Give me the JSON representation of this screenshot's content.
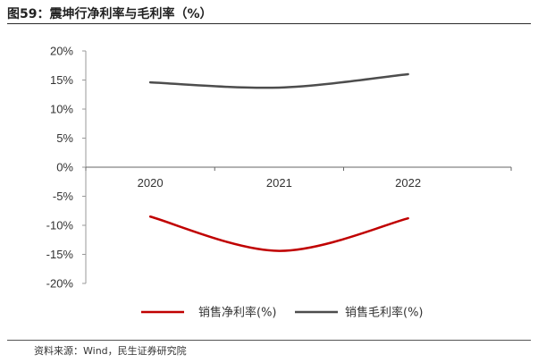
{
  "header": {
    "title": "图59：震坤行净利率与毛利率（%）"
  },
  "footer": {
    "source": "资料来源：Wind，民生证券研究院"
  },
  "chart_data": {
    "type": "line",
    "title": "图59：震坤行净利率与毛利率（%）",
    "xlabel": "",
    "ylabel": "",
    "categories": [
      "2020",
      "2021",
      "2022"
    ],
    "ylim": [
      -20,
      20
    ],
    "yticks": [
      20,
      15,
      10,
      5,
      0,
      -5,
      -10,
      -15,
      -20
    ],
    "ytick_labels": [
      "20%",
      "15%",
      "10%",
      "5%",
      "0%",
      "-5%",
      "-10%",
      "-15%",
      "-20%"
    ],
    "grid": false,
    "legend_position": "bottom",
    "series": [
      {
        "name": "销售净利率(%)",
        "values": [
          -8.5,
          -14.4,
          -8.8
        ],
        "color": "#c00000"
      },
      {
        "name": "销售毛利率(%)",
        "values": [
          14.6,
          13.7,
          16.0
        ],
        "color": "#4d4d4d"
      }
    ]
  }
}
